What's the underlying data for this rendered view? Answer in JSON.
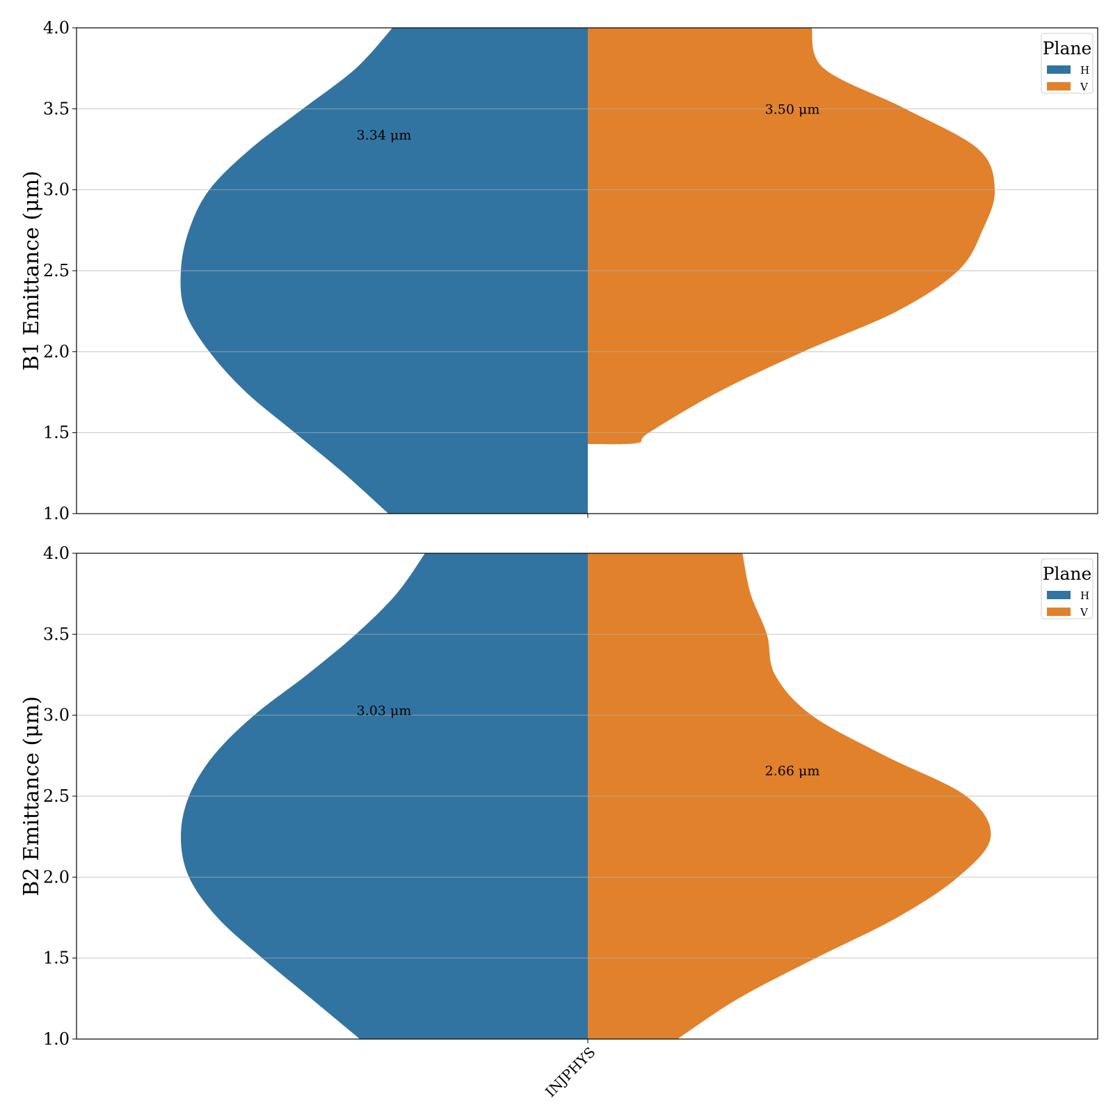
{
  "chart_data": [
    {
      "type": "violin",
      "ylabel": "B1 Emittance (μm)",
      "ylim": [
        1.0,
        4.0
      ],
      "yticks": [
        "1.0",
        "1.5",
        "2.0",
        "2.5",
        "3.0",
        "3.5",
        "4.0"
      ],
      "categories": [
        "INJPHYS"
      ],
      "grid": true,
      "legend": {
        "title": "Plane",
        "position": "top-right",
        "entries": [
          "H",
          "V"
        ]
      },
      "series": [
        {
          "name": "H",
          "color": "#3274a1",
          "side": "left",
          "annotation": "3.34 μm",
          "annotation_y": 3.34,
          "density": [
            [
              1.0,
              0.49
            ],
            [
              1.25,
              0.6
            ],
            [
              1.5,
              0.72
            ],
            [
              1.75,
              0.84
            ],
            [
              2.0,
              0.93
            ],
            [
              2.25,
              0.99
            ],
            [
              2.5,
              1.0
            ],
            [
              2.75,
              0.98
            ],
            [
              3.0,
              0.93
            ],
            [
              3.25,
              0.83
            ],
            [
              3.5,
              0.7
            ],
            [
              3.75,
              0.57
            ],
            [
              4.0,
              0.48
            ]
          ]
        },
        {
          "name": "V",
          "color": "#e1812c",
          "side": "right",
          "annotation": "3.50 μm",
          "annotation_y": 3.5,
          "density": [
            [
              1.43,
              0.0
            ],
            [
              1.435,
              0.12
            ],
            [
              1.5,
              0.15
            ],
            [
              1.75,
              0.32
            ],
            [
              2.0,
              0.53
            ],
            [
              2.25,
              0.76
            ],
            [
              2.5,
              0.91
            ],
            [
              2.75,
              0.97
            ],
            [
              3.0,
              1.0
            ],
            [
              3.25,
              0.96
            ],
            [
              3.5,
              0.78
            ],
            [
              3.75,
              0.58
            ],
            [
              4.0,
              0.55
            ]
          ]
        }
      ]
    },
    {
      "type": "violin",
      "ylabel": "B2 Emittance (μm)",
      "ylim": [
        1.0,
        4.0
      ],
      "yticks": [
        "1.0",
        "1.5",
        "2.0",
        "2.5",
        "3.0",
        "3.5",
        "4.0"
      ],
      "categories": [
        "INJPHYS"
      ],
      "xticklabels": [
        "INJPHYS"
      ],
      "grid": true,
      "legend": {
        "title": "Plane",
        "position": "top-right",
        "entries": [
          "H",
          "V"
        ]
      },
      "series": [
        {
          "name": "H",
          "color": "#3274a1",
          "side": "left",
          "annotation": "3.03 μm",
          "annotation_y": 3.03,
          "density": [
            [
              1.0,
              0.56
            ],
            [
              1.25,
              0.68
            ],
            [
              1.5,
              0.8
            ],
            [
              1.75,
              0.91
            ],
            [
              2.0,
              0.98
            ],
            [
              2.25,
              1.0
            ],
            [
              2.5,
              0.98
            ],
            [
              2.75,
              0.92
            ],
            [
              3.0,
              0.82
            ],
            [
              3.25,
              0.69
            ],
            [
              3.5,
              0.57
            ],
            [
              3.75,
              0.47
            ],
            [
              4.0,
              0.4
            ]
          ]
        },
        {
          "name": "V",
          "color": "#e1812c",
          "side": "right",
          "annotation": "2.66 μm",
          "annotation_y": 2.66,
          "density": [
            [
              1.0,
              0.22
            ],
            [
              1.25,
              0.37
            ],
            [
              1.5,
              0.56
            ],
            [
              1.75,
              0.76
            ],
            [
              2.0,
              0.91
            ],
            [
              2.25,
              0.99
            ],
            [
              2.5,
              0.93
            ],
            [
              2.75,
              0.73
            ],
            [
              3.0,
              0.55
            ],
            [
              3.25,
              0.46
            ],
            [
              3.5,
              0.44
            ],
            [
              3.75,
              0.4
            ],
            [
              4.0,
              0.38
            ]
          ]
        }
      ]
    }
  ]
}
